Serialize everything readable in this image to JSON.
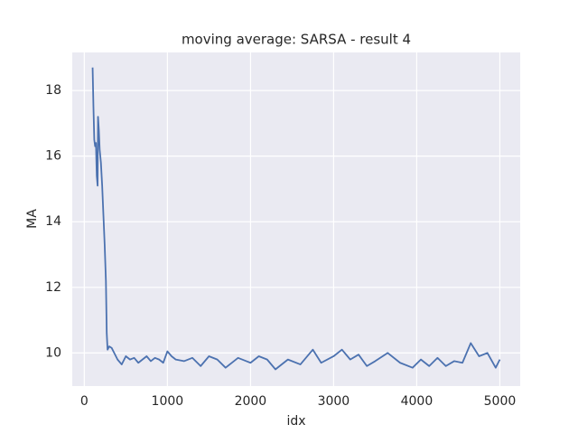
{
  "chart_data": {
    "type": "line",
    "title": "moving average: SARSA - result 4",
    "x_label": "idx",
    "y_label": "MA",
    "x": [
      100,
      110,
      120,
      130,
      140,
      150,
      160,
      165,
      175,
      185,
      200,
      215,
      230,
      245,
      260,
      270,
      280,
      300,
      330,
      360,
      400,
      450,
      500,
      550,
      600,
      650,
      700,
      750,
      800,
      850,
      900,
      950,
      1000,
      1050,
      1100,
      1200,
      1300,
      1400,
      1500,
      1600,
      1700,
      1850,
      1950,
      2000,
      2100,
      2200,
      2300,
      2450,
      2600,
      2750,
      2850,
      3000,
      3100,
      3200,
      3300,
      3400,
      3500,
      3650,
      3800,
      3950,
      4050,
      4150,
      4250,
      4350,
      4450,
      4550,
      4650,
      4750,
      4850,
      4950,
      5000
    ],
    "series": [
      {
        "name": "MA",
        "color": "#4c72b0",
        "values": [
          18.7,
          17.5,
          16.5,
          16.3,
          16.4,
          15.4,
          15.1,
          17.2,
          16.8,
          16.2,
          15.8,
          15.1,
          14.2,
          13.3,
          12.2,
          10.6,
          10.1,
          10.2,
          10.15,
          10.0,
          9.8,
          9.65,
          9.9,
          9.8,
          9.85,
          9.7,
          9.8,
          9.9,
          9.75,
          9.85,
          9.8,
          9.7,
          10.05,
          9.9,
          9.8,
          9.75,
          9.85,
          9.6,
          9.9,
          9.8,
          9.55,
          9.85,
          9.75,
          9.7,
          9.9,
          9.8,
          9.5,
          9.8,
          9.65,
          10.1,
          9.7,
          9.9,
          10.1,
          9.8,
          9.95,
          9.6,
          9.75,
          10.0,
          9.7,
          9.55,
          9.8,
          9.6,
          9.85,
          9.6,
          9.75,
          9.7,
          10.3,
          9.9,
          10.0,
          9.55,
          9.8
        ]
      }
    ],
    "xlim": [
      -145,
      5245
    ],
    "ylim": [
      8.99,
      19.16
    ],
    "xticks": [
      0,
      1000,
      2000,
      3000,
      4000,
      5000
    ],
    "yticks": [
      10,
      12,
      14,
      16,
      18
    ],
    "grid": true
  }
}
